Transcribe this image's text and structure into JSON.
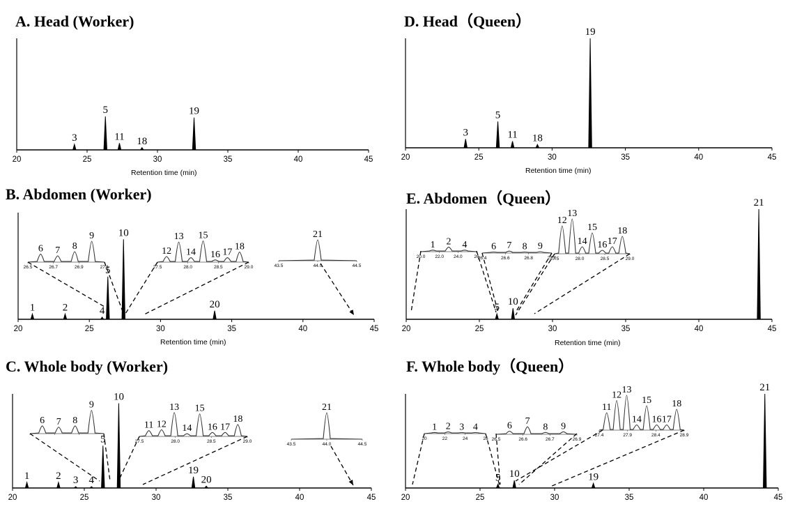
{
  "chart_data": [
    {
      "id": "A",
      "type": "line",
      "title": "A. Head (Worker)",
      "xlabel": "Retention time (min)",
      "xlim": [
        20,
        45
      ],
      "xticks": [
        20,
        25,
        30,
        35,
        40,
        45
      ],
      "peaks": [
        {
          "label": "3",
          "x": 24.1,
          "height": 0.05
        },
        {
          "label": "5",
          "x": 26.3,
          "height": 0.3
        },
        {
          "label": "11",
          "x": 27.3,
          "height": 0.06
        },
        {
          "label": "18",
          "x": 28.9,
          "height": 0.02
        },
        {
          "label": "19",
          "x": 32.6,
          "height": 0.29
        }
      ],
      "insets": []
    },
    {
      "id": "B",
      "type": "line",
      "title": "B. Abdomen (Worker)",
      "xlabel": "Retention time (min)",
      "xlim": [
        20,
        45
      ],
      "xticks": [
        20,
        25,
        30,
        35,
        40,
        45
      ],
      "peaks": [
        {
          "label": "1",
          "x": 21.0,
          "height": 0.05
        },
        {
          "label": "2",
          "x": 23.3,
          "height": 0.05
        },
        {
          "label": "4",
          "x": 25.9,
          "height": 0.02
        },
        {
          "label": "5",
          "x": 26.3,
          "height": 0.4
        },
        {
          "label": "10",
          "x": 27.4,
          "height": 0.75
        },
        {
          "label": "20",
          "x": 33.8,
          "height": 0.08
        }
      ],
      "insets": [
        {
          "xticks": [
            "26.5",
            "26.7",
            "26.9",
            "27.1"
          ],
          "peaks": [
            {
              "label": "6",
              "height": 0.38
            },
            {
              "label": "7",
              "height": 0.3
            },
            {
              "label": "8",
              "height": 0.5
            },
            {
              "label": "9",
              "height": 1.0
            }
          ]
        },
        {
          "xticks": [
            "27.5",
            "28.0",
            "28.5",
            "29.0"
          ],
          "peaks": [
            {
              "label": "12",
              "height": 0.25
            },
            {
              "label": "13",
              "height": 0.9
            },
            {
              "label": "14",
              "height": 0.2
            },
            {
              "label": "15",
              "height": 0.95
            },
            {
              "label": "16",
              "height": 0.1
            },
            {
              "label": "17",
              "height": 0.2
            },
            {
              "label": "18",
              "height": 0.45
            }
          ]
        },
        {
          "xticks": [
            "43.5",
            "44.0",
            "44.5"
          ],
          "peaks": [
            {
              "label": "21",
              "height": 1.0
            }
          ]
        }
      ]
    },
    {
      "id": "C",
      "type": "line",
      "title": "C. Whole body (Worker)",
      "xlabel": "",
      "xlim": [
        20,
        45
      ],
      "xticks": [
        20,
        25,
        30,
        35,
        40,
        45
      ],
      "peaks": [
        {
          "label": "1",
          "x": 21.0,
          "height": 0.06
        },
        {
          "label": "2",
          "x": 23.2,
          "height": 0.06
        },
        {
          "label": "3",
          "x": 24.4,
          "height": 0.01
        },
        {
          "label": "4",
          "x": 25.5,
          "height": 0.01
        },
        {
          "label": "5",
          "x": 26.3,
          "height": 0.45
        },
        {
          "label": "10",
          "x": 27.4,
          "height": 0.9
        },
        {
          "label": "19",
          "x": 32.6,
          "height": 0.12
        },
        {
          "label": "20",
          "x": 33.5,
          "height": 0.02
        }
      ],
      "insets": [
        {
          "xticks": [
            "",
            "",
            "",
            ""
          ],
          "peaks": [
            {
              "label": "6",
              "height": 0.3
            },
            {
              "label": "7",
              "height": 0.25
            },
            {
              "label": "8",
              "height": 0.3
            },
            {
              "label": "9",
              "height": 0.9
            }
          ]
        },
        {
          "xticks": [
            "27.5",
            "28.0",
            "28.5",
            "29.0"
          ],
          "peaks": [
            {
              "label": "11",
              "height": 0.22
            },
            {
              "label": "12",
              "height": 0.25
            },
            {
              "label": "13",
              "height": 0.9
            },
            {
              "label": "14",
              "height": 0.1
            },
            {
              "label": "15",
              "height": 0.85
            },
            {
              "label": "16",
              "height": 0.15
            },
            {
              "label": "17",
              "height": 0.15
            },
            {
              "label": "18",
              "height": 0.45
            }
          ]
        },
        {
          "xticks": [
            "43.5",
            "44.0",
            "44.5"
          ],
          "peaks": [
            {
              "label": "21",
              "height": 1.0
            }
          ]
        }
      ]
    },
    {
      "id": "D",
      "type": "line",
      "title": "D. Head（Queen）",
      "xlabel": "Retention time (min)",
      "xlim": [
        20,
        45
      ],
      "xticks": [
        20,
        25,
        30,
        35,
        40,
        45
      ],
      "peaks": [
        {
          "label": "3",
          "x": 24.1,
          "height": 0.08
        },
        {
          "label": "5",
          "x": 26.3,
          "height": 0.24
        },
        {
          "label": "11",
          "x": 27.3,
          "height": 0.06
        },
        {
          "label": "18",
          "x": 29.0,
          "height": 0.03
        },
        {
          "label": "19",
          "x": 32.6,
          "height": 1.0
        }
      ],
      "insets": []
    },
    {
      "id": "E",
      "type": "line",
      "title": "E. Abdomen（Queen）",
      "xlabel": "Retention time (min)",
      "xlim": [
        20,
        45
      ],
      "xticks": [
        20,
        25,
        30,
        35,
        40,
        45
      ],
      "peaks": [
        {
          "label": "5",
          "x": 26.2,
          "height": 0.05
        },
        {
          "label": "10",
          "x": 27.3,
          "height": 0.1
        },
        {
          "label": "21",
          "x": 44.1,
          "height": 1.0
        }
      ],
      "insets": [
        {
          "xticks": [
            "20.0",
            "22.0",
            "24.0",
            "26"
          ],
          "peaks": [
            {
              "label": "1",
              "height": 0.1
            },
            {
              "label": "2",
              "height": 0.3
            },
            {
              "label": "4",
              "height": 0.1
            }
          ]
        },
        {
          "xticks": [
            "26.4",
            "26.6",
            "26.8",
            "27.0"
          ],
          "peaks": [
            {
              "label": "6",
              "height": 0.15
            },
            {
              "label": "7",
              "height": 0.35
            },
            {
              "label": "8",
              "height": 0.15
            },
            {
              "label": "9",
              "height": 0.25
            }
          ]
        },
        {
          "xticks": [
            "27.5",
            "28.0",
            "28.5",
            "29.0"
          ],
          "peaks": [
            {
              "label": "12",
              "height": 0.8
            },
            {
              "label": "13",
              "height": 1.0
            },
            {
              "label": "14",
              "height": 0.2
            },
            {
              "label": "15",
              "height": 0.6
            },
            {
              "label": "16",
              "height": 0.1
            },
            {
              "label": "17",
              "height": 0.2
            },
            {
              "label": "18",
              "height": 0.5
            }
          ]
        }
      ]
    },
    {
      "id": "F",
      "type": "line",
      "title": "F. Whole body（Queen）",
      "xlabel": "",
      "xlim": [
        20,
        45
      ],
      "xticks": [
        20,
        25,
        30,
        35,
        40,
        45
      ],
      "peaks": [
        {
          "label": "5",
          "x": 26.2,
          "height": 0.04
        },
        {
          "label": "10",
          "x": 27.3,
          "height": 0.08
        },
        {
          "label": "19",
          "x": 32.6,
          "height": 0.05
        },
        {
          "label": "21",
          "x": 44.1,
          "height": 1.0
        }
      ],
      "insets": [
        {
          "xticks": [
            "20",
            "22",
            "24",
            "26"
          ],
          "peaks": [
            {
              "label": "1",
              "height": 0.1
            },
            {
              "label": "2",
              "height": 0.15
            },
            {
              "label": "3",
              "height": 0.08
            },
            {
              "label": "4",
              "height": 0.08
            }
          ]
        },
        {
          "xticks": [
            "26.5",
            "26.6",
            "26.7",
            "26.9"
          ],
          "peaks": [
            {
              "label": "6",
              "height": 0.25
            },
            {
              "label": "7",
              "height": 0.6
            },
            {
              "label": "8",
              "height": 0.15
            },
            {
              "label": "9",
              "height": 0.2
            }
          ]
        },
        {
          "xticks": [
            "27.4",
            "27.9",
            "28.4",
            "28.9"
          ],
          "peaks": [
            {
              "label": "11",
              "height": 0.5
            },
            {
              "label": "12",
              "height": 0.85
            },
            {
              "label": "13",
              "height": 1.0
            },
            {
              "label": "14",
              "height": 0.15
            },
            {
              "label": "15",
              "height": 0.7
            },
            {
              "label": "16",
              "height": 0.15
            },
            {
              "label": "17",
              "height": 0.15
            },
            {
              "label": "18",
              "height": 0.6
            }
          ]
        }
      ]
    }
  ]
}
